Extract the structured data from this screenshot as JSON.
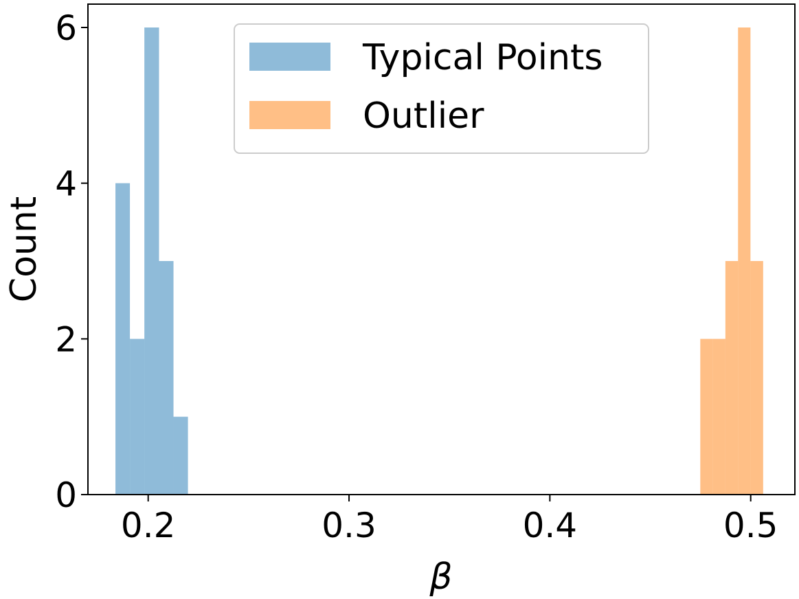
{
  "chart_data": {
    "type": "bar",
    "subtype": "histogram",
    "xlabel": "β",
    "ylabel": "Count",
    "xlim": [
      0.17,
      0.522
    ],
    "ylim": [
      0,
      6.3
    ],
    "xticks": [
      0.2,
      0.3,
      0.4,
      0.5
    ],
    "xtick_labels": [
      "0.2",
      "0.3",
      "0.4",
      "0.5"
    ],
    "yticks": [
      0,
      2,
      4,
      6
    ],
    "ytick_labels": [
      "0",
      "2",
      "4",
      "6"
    ],
    "grid": false,
    "legend_placement": "upper-center",
    "series": [
      {
        "name": "Typical Points",
        "color": "#1f77b4",
        "opacity": 0.5,
        "bins": [
          {
            "x0": 0.1837,
            "x1": 0.1909,
            "count": 4
          },
          {
            "x0": 0.1909,
            "x1": 0.1981,
            "count": 2
          },
          {
            "x0": 0.1981,
            "x1": 0.2054,
            "count": 6
          },
          {
            "x0": 0.2054,
            "x1": 0.2126,
            "count": 3
          },
          {
            "x0": 0.2126,
            "x1": 0.2198,
            "count": 1
          }
        ]
      },
      {
        "name": "Outlier",
        "color": "#ff7f0e",
        "opacity": 0.5,
        "bins": [
          {
            "x0": 0.4749,
            "x1": 0.4812,
            "count": 2
          },
          {
            "x0": 0.4812,
            "x1": 0.4874,
            "count": 2
          },
          {
            "x0": 0.4874,
            "x1": 0.4937,
            "count": 3
          },
          {
            "x0": 0.4937,
            "x1": 0.4999,
            "count": 6
          },
          {
            "x0": 0.4999,
            "x1": 0.5062,
            "count": 3
          }
        ]
      }
    ]
  }
}
